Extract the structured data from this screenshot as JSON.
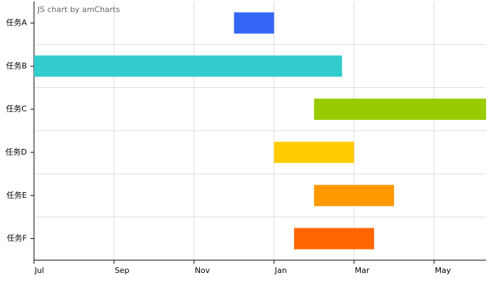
{
  "chart_data": {
    "type": "gantt",
    "watermark": "JS chart by amCharts",
    "categories": [
      "任务A",
      "任务B",
      "任务C",
      "任务D",
      "任务E",
      "任务F"
    ],
    "start": [
      5.0,
      0,
      7.0,
      6.0,
      7.0,
      6.5
    ],
    "end": [
      6.0,
      7.7,
      11.3,
      8.0,
      9.0,
      8.5
    ],
    "colors": [
      "#3366f5",
      "#33cccc",
      "#99cc00",
      "#ffcc00",
      "#ff9900",
      "#ff6600"
    ],
    "xlim": [
      0,
      11.3
    ],
    "xticks": [
      {
        "value": 0,
        "label": "Jul"
      },
      {
        "value": 2,
        "label": "Sep"
      },
      {
        "value": 4,
        "label": "Nov"
      },
      {
        "value": 6,
        "label": "Jan"
      },
      {
        "value": 8,
        "label": "Mar"
      },
      {
        "value": 10,
        "label": "May"
      }
    ],
    "grid": true
  }
}
